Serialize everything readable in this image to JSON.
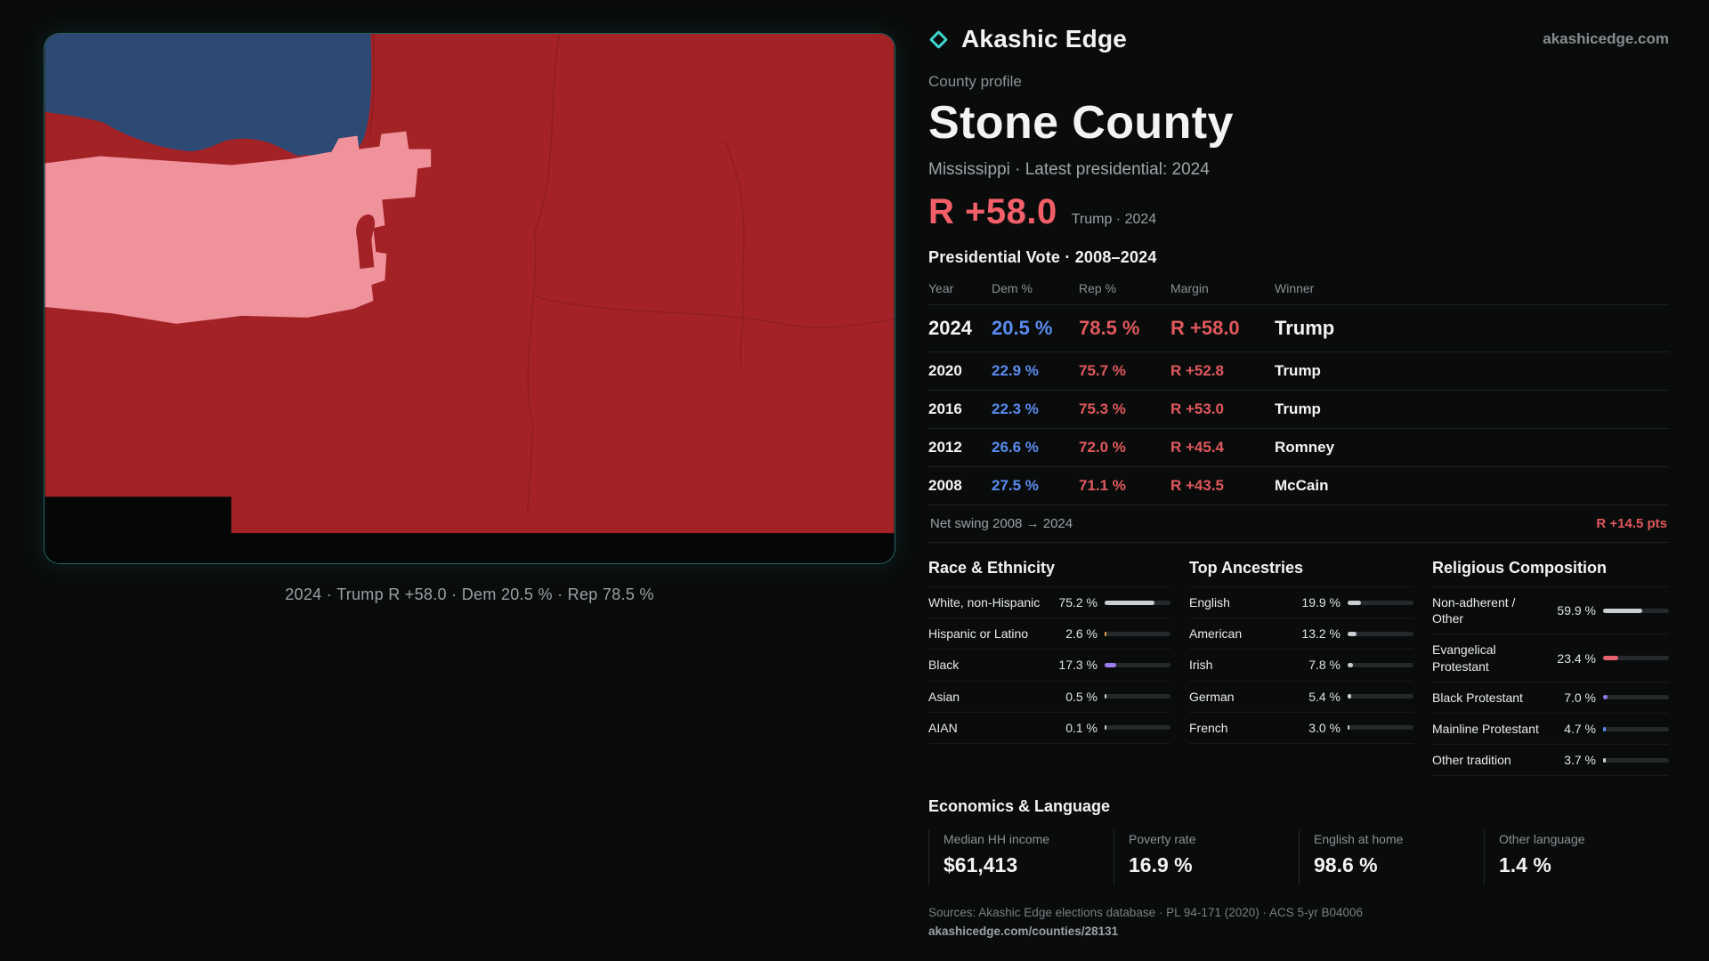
{
  "theme": {
    "accent": "#3ed6cf",
    "dem": "#5a8cf0",
    "rep": "#e0585c",
    "headline": "#f25f68",
    "swing": "#e0585c"
  },
  "brand": {
    "name": "Akashic Edge",
    "domain": "akashicedge.com"
  },
  "map": {
    "caption": "2024 · Trump  R +58.0 · Dem 20.5 % · Rep 78.5 %",
    "colors": {
      "background": "#050707",
      "rep": "#a32226",
      "dem": "#2d4a74",
      "lean_rep": "#f0929b",
      "boundary": "#801a1e"
    }
  },
  "profile": {
    "kicker": "County profile",
    "title": "Stone County",
    "subtitle": "Mississippi · Latest presidential: 2024",
    "headline_margin": "R +58.0",
    "headline_context": "Trump · 2024"
  },
  "vote_table": {
    "title": "Presidential Vote · 2008–2024",
    "columns": [
      "Year",
      "Dem %",
      "Rep %",
      "Margin",
      "Winner"
    ],
    "rows": [
      {
        "year": "2024",
        "dem": "20.5 %",
        "rep": "78.5 %",
        "margin": "R +58.0",
        "winner": "Trump"
      },
      {
        "year": "2020",
        "dem": "22.9 %",
        "rep": "75.7 %",
        "margin": "R +52.8",
        "winner": "Trump"
      },
      {
        "year": "2016",
        "dem": "22.3 %",
        "rep": "75.3 %",
        "margin": "R +53.0",
        "winner": "Trump"
      },
      {
        "year": "2012",
        "dem": "26.6 %",
        "rep": "72.0 %",
        "margin": "R +45.4",
        "winner": "Romney"
      },
      {
        "year": "2008",
        "dem": "27.5 %",
        "rep": "71.1 %",
        "margin": "R +43.5",
        "winner": "McCain"
      }
    ]
  },
  "swing": {
    "label": "Net swing 2008 → 2024",
    "value": "R +14.5 pts"
  },
  "demographics": {
    "race": {
      "title": "Race & Ethnicity",
      "rows": [
        {
          "label": "White, non-Hispanic",
          "value": "75.2 %",
          "pct": 75.2,
          "color": "#c9ced3"
        },
        {
          "label": "Hispanic or Latino",
          "value": "2.6 %",
          "pct": 2.6,
          "color": "#e2a03f"
        },
        {
          "label": "Black",
          "value": "17.3 %",
          "pct": 17.3,
          "color": "#9d7df2"
        },
        {
          "label": "Asian",
          "value": "0.5 %",
          "pct": 0.5,
          "color": "#c9ced3"
        },
        {
          "label": "AIAN",
          "value": "0.1 %",
          "pct": 0.1,
          "color": "#c9ced3"
        }
      ]
    },
    "ancestry": {
      "title": "Top Ancestries",
      "rows": [
        {
          "label": "English",
          "value": "19.9 %",
          "pct": 19.9,
          "color": "#c9ced3"
        },
        {
          "label": "American",
          "value": "13.2 %",
          "pct": 13.2,
          "color": "#c9ced3"
        },
        {
          "label": "Irish",
          "value": "7.8 %",
          "pct": 7.8,
          "color": "#c9ced3"
        },
        {
          "label": "German",
          "value": "5.4 %",
          "pct": 5.4,
          "color": "#c9ced3"
        },
        {
          "label": "French",
          "value": "3.0 %",
          "pct": 3.0,
          "color": "#c9ced3"
        }
      ]
    },
    "religion": {
      "title": "Religious Composition",
      "rows": [
        {
          "label": "Non-adherent / Other",
          "value": "59.9 %",
          "pct": 59.9,
          "color": "#c9ced3"
        },
        {
          "label": "Evangelical Protestant",
          "value": "23.4 %",
          "pct": 23.4,
          "color": "#e4636e"
        },
        {
          "label": "Black Protestant",
          "value": "7.0 %",
          "pct": 7.0,
          "color": "#8f7bf0"
        },
        {
          "label": "Mainline Protestant",
          "value": "4.7 %",
          "pct": 4.7,
          "color": "#5b8bef"
        },
        {
          "label": "Other tradition",
          "value": "3.7 %",
          "pct": 3.7,
          "color": "#c9ced3"
        }
      ]
    }
  },
  "economics": {
    "title": "Economics & Language",
    "stats": [
      {
        "label": "Median HH income",
        "value": "$61,413"
      },
      {
        "label": "Poverty rate",
        "value": "16.9 %"
      },
      {
        "label": "English at home",
        "value": "98.6 %"
      },
      {
        "label": "Other language",
        "value": "1.4 %"
      }
    ]
  },
  "footer": {
    "sources": "Sources: Akashic Edge elections database · PL 94-171 (2020) · ACS 5-yr B04006",
    "permalink": "akashicedge.com/counties/28131"
  }
}
